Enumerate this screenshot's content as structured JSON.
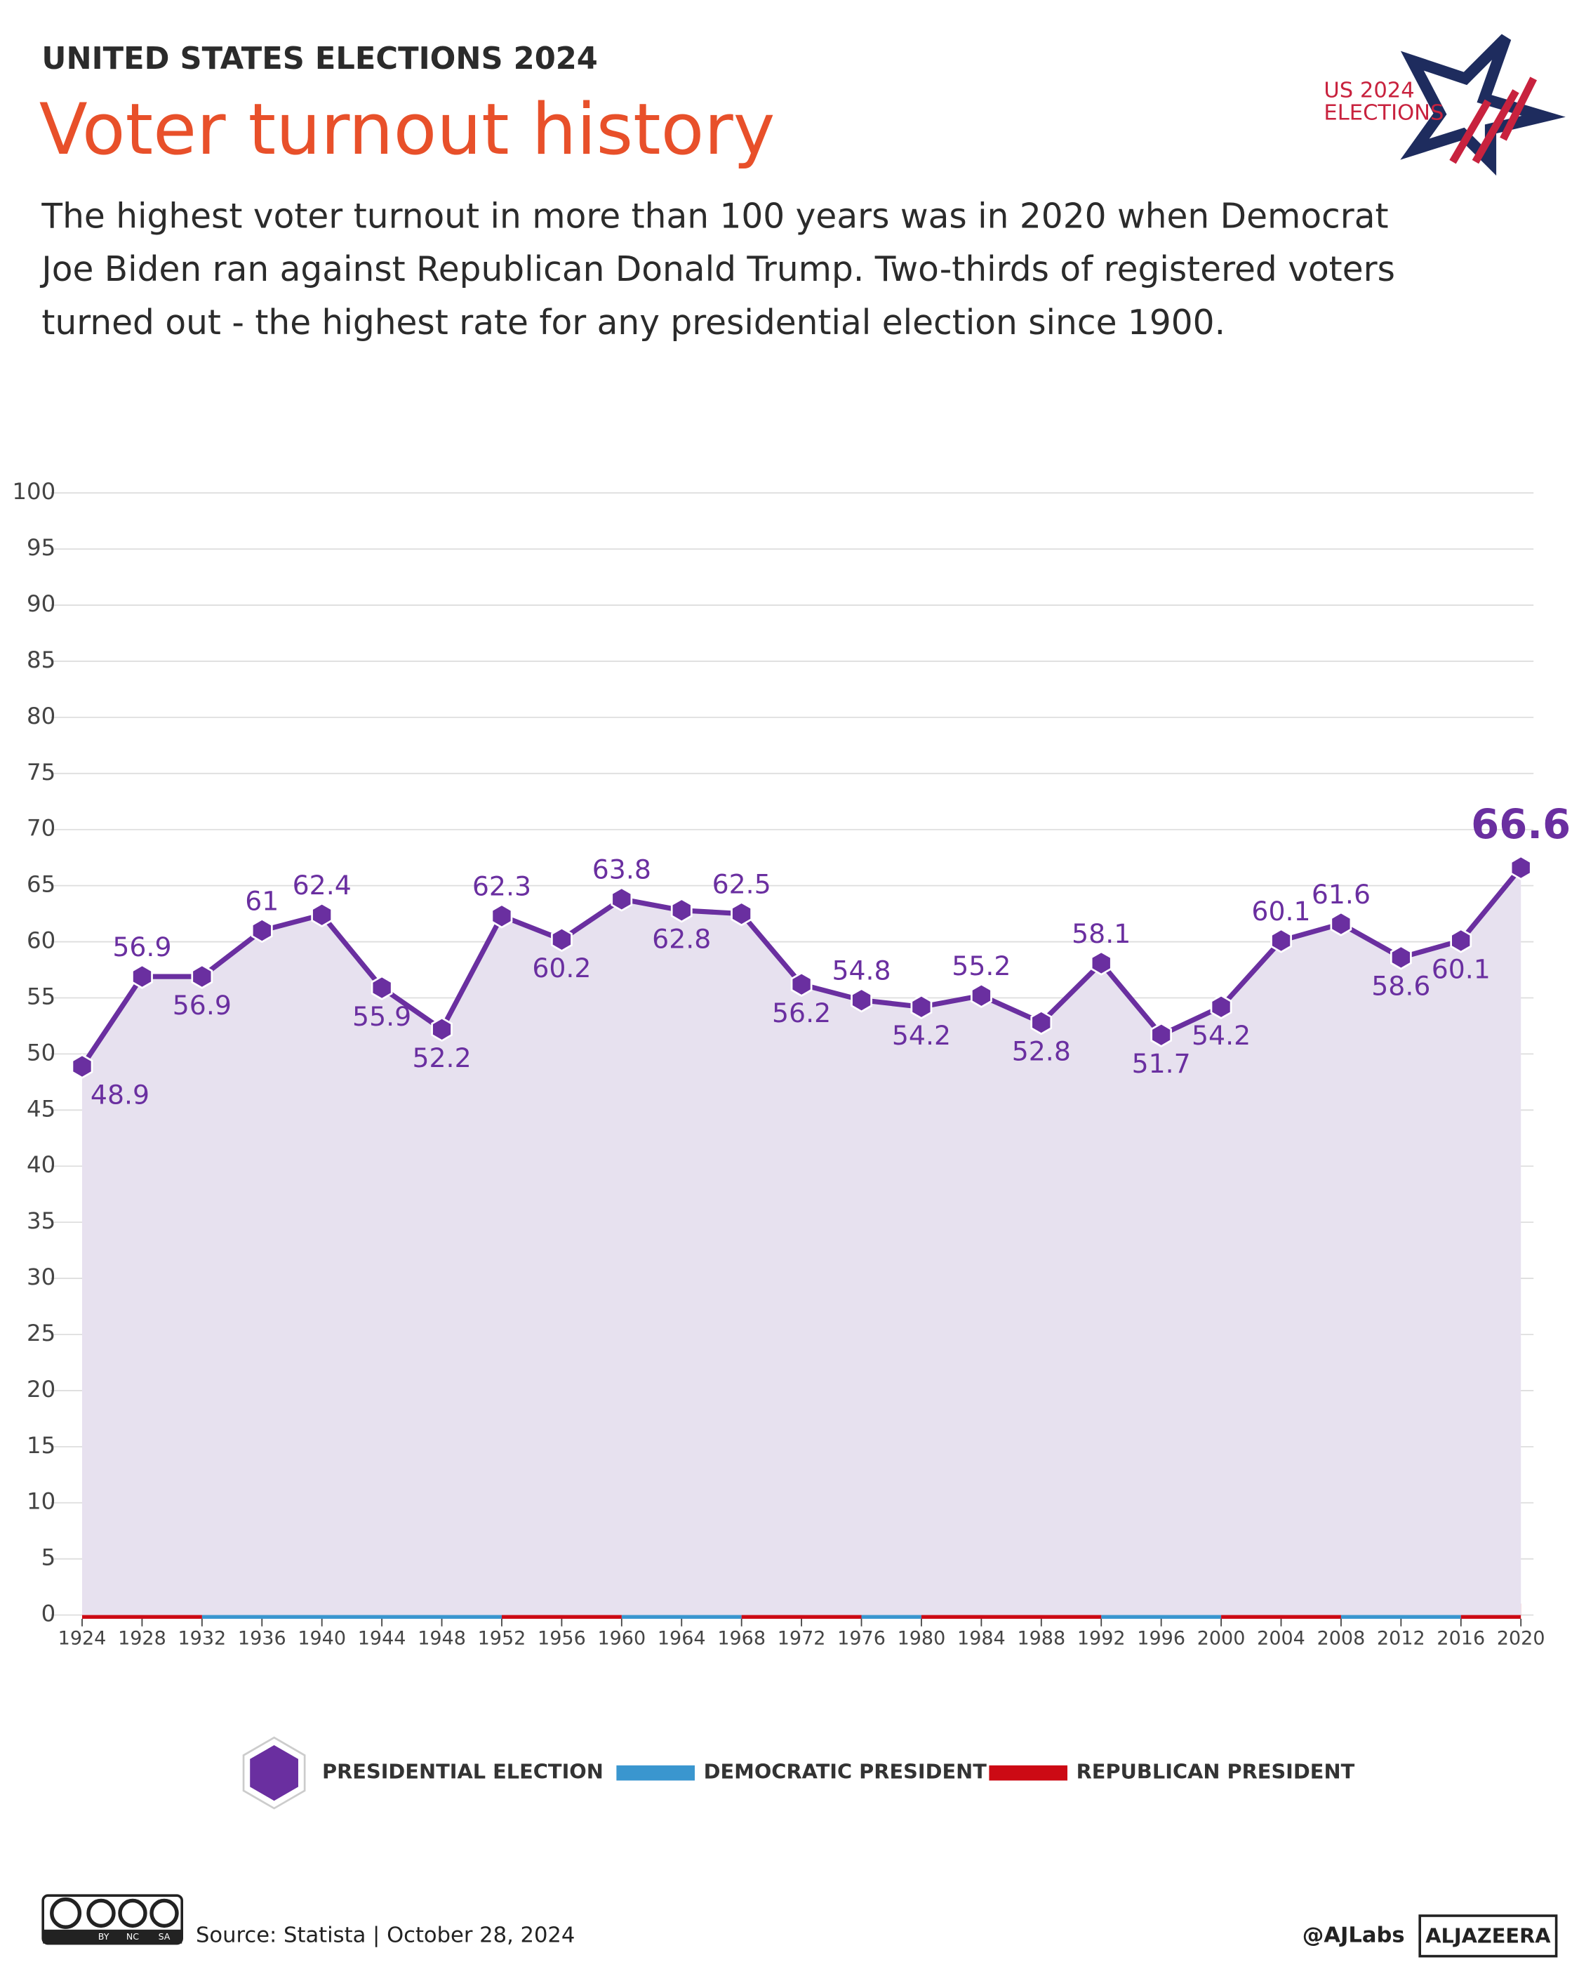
{
  "header": "UNITED STATES ELECTIONS 2024",
  "logo": {
    "line1": "US 2024",
    "line2": "ELECTIONS"
  },
  "chart_data": {
    "type": "line",
    "title": "Voter turnout history",
    "subtitle": [
      "The highest voter turnout in more than 100 years was in 2020 when Democrat",
      "Joe Biden ran against Republican Donald Trump. Two-thirds of registered voters",
      "turned out - the highest rate for any presidential election since 1900."
    ],
    "x": [
      1924,
      1928,
      1932,
      1936,
      1940,
      1944,
      1948,
      1952,
      1956,
      1960,
      1964,
      1968,
      1972,
      1976,
      1980,
      1984,
      1988,
      1992,
      1996,
      2000,
      2004,
      2008,
      2012,
      2016,
      2020
    ],
    "series": [
      {
        "name": "PRESIDENTIAL ELECTION",
        "color": "#6a2fa0",
        "values": [
          48.9,
          56.9,
          56.9,
          61,
          62.4,
          55.9,
          52.2,
          62.3,
          60.2,
          63.8,
          62.8,
          62.5,
          56.2,
          54.8,
          54.2,
          55.2,
          52.8,
          58.1,
          51.7,
          54.2,
          60.1,
          61.6,
          58.6,
          60.1,
          66.6
        ]
      }
    ],
    "area_color": "#e7e1ef",
    "presidents": [
      {
        "name": "DEMOCRATIC PRESIDENT",
        "color": "#3a96cf",
        "terms": [
          [
            1932,
            1952
          ],
          [
            1960,
            1968
          ],
          [
            1976,
            1980
          ],
          [
            1992,
            2000
          ],
          [
            2008,
            2016
          ]
        ]
      },
      {
        "name": "REPUBLICAN PRESIDENT",
        "color": "#cc0a14",
        "terms": [
          [
            1924,
            1932
          ],
          [
            1952,
            1960
          ],
          [
            1968,
            1976
          ],
          [
            1980,
            1992
          ],
          [
            2000,
            2008
          ],
          [
            2016,
            2020
          ]
        ]
      }
    ],
    "xlim": [
      1924,
      2020
    ],
    "xticks": [
      1924,
      1928,
      1932,
      1936,
      1940,
      1944,
      1948,
      1952,
      1956,
      1960,
      1964,
      1968,
      1972,
      1976,
      1980,
      1984,
      1988,
      1992,
      1996,
      2000,
      2004,
      2008,
      2012,
      2016,
      2020
    ],
    "ylim": [
      0,
      100
    ],
    "yticks": [
      0,
      5,
      10,
      15,
      20,
      25,
      30,
      35,
      40,
      45,
      50,
      55,
      60,
      65,
      70,
      75,
      80,
      85,
      90,
      95,
      100
    ],
    "grid": true
  },
  "footer": {
    "source": "Source:  Statista  |  October 28, 2024",
    "handle": "@AJLabs",
    "brand": "ALJAZEERA",
    "license": [
      "BY",
      "NC",
      "SA"
    ]
  }
}
